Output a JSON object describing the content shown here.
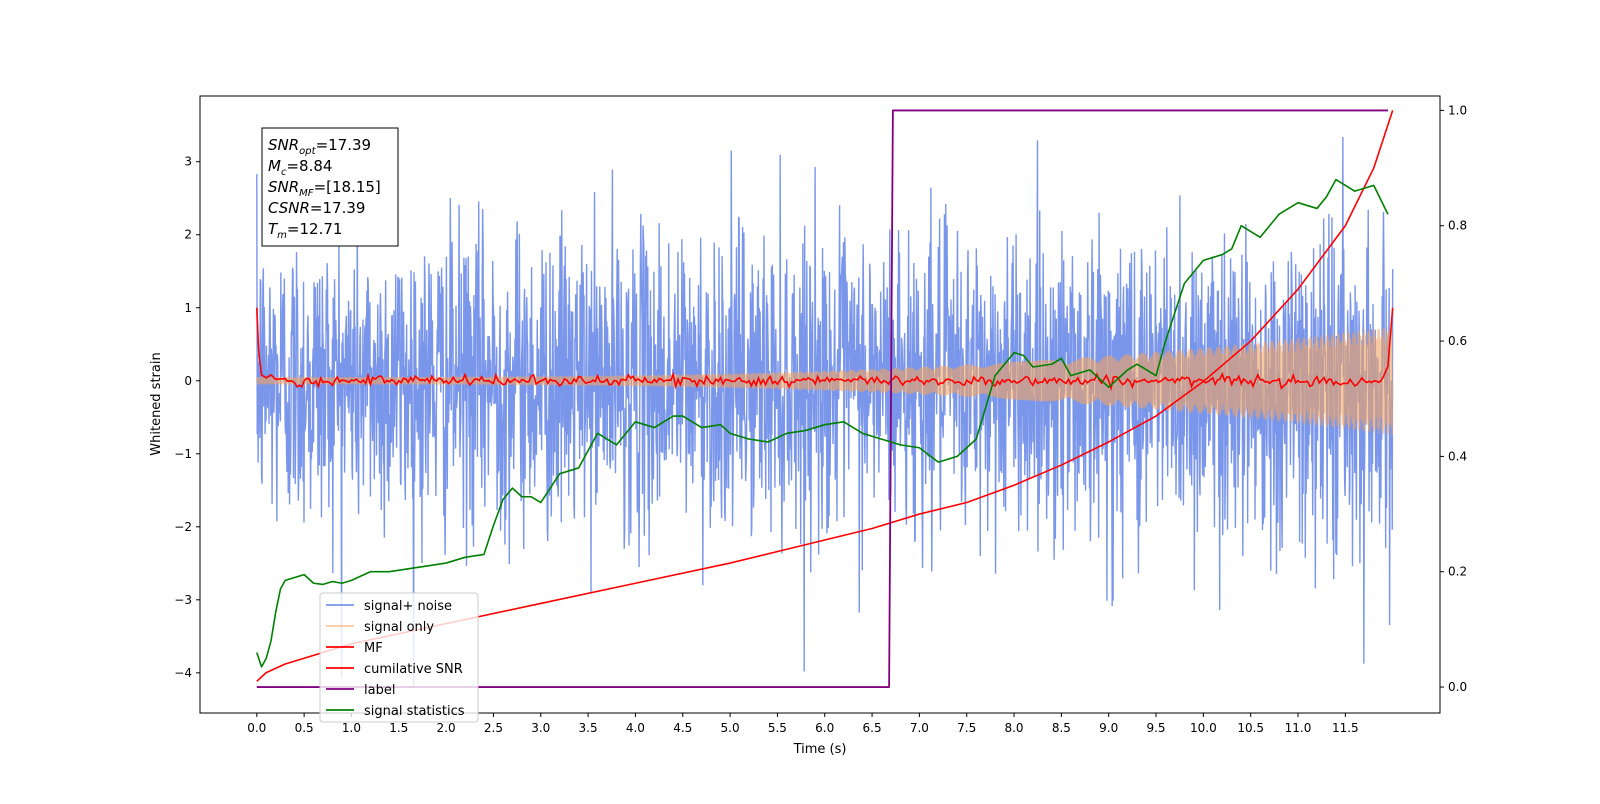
{
  "chart_data": {
    "type": "line",
    "xlabel": "Time (s)",
    "ylabel": "Whitened strain",
    "xlim": [
      -0.6,
      12.5
    ],
    "ylim": [
      -4.55,
      3.9
    ],
    "y2lim": [
      -0.045,
      1.025
    ],
    "xticks": [
      0.0,
      0.5,
      1.0,
      1.5,
      2.0,
      2.5,
      3.0,
      3.5,
      4.0,
      4.5,
      5.0,
      5.5,
      6.0,
      6.5,
      7.0,
      7.5,
      8.0,
      8.5,
      9.0,
      9.5,
      10.0,
      10.5,
      11.0,
      11.5
    ],
    "xtick_labels": [
      "0.0",
      "0.5",
      "1.0",
      "1.5",
      "2.0",
      "2.5",
      "3.0",
      "3.5",
      "4.0",
      "4.5",
      "5.0",
      "5.5",
      "6.0",
      "6.5",
      "7.0",
      "7.5",
      "8.0",
      "8.5",
      "9.0",
      "9.5",
      "10.0",
      "10.5",
      "11.0",
      "11.5"
    ],
    "yticks": [
      -4,
      -3,
      -2,
      -1,
      0,
      1,
      2,
      3
    ],
    "ytick_labels": [
      "−4",
      "−3",
      "−2",
      "−1",
      "0",
      "1",
      "2",
      "3"
    ],
    "y2ticks": [
      0.0,
      0.2,
      0.4,
      0.6,
      0.8,
      1.0
    ],
    "y2tick_labels": [
      "0.0",
      "0.2",
      "0.4",
      "0.6",
      "0.8",
      "1.0"
    ],
    "grid": false,
    "legend_position": "bottom-left",
    "annotation": [
      {
        "name": "SNR",
        "sub": "opt",
        "value": "=17.39"
      },
      {
        "name": "M",
        "sub": "c",
        "value": "=8.84"
      },
      {
        "name": "SNR",
        "sub": "MF",
        "value": "=[18.15]"
      },
      {
        "name": "CSNR",
        "sub": "",
        "value": "=17.39"
      },
      {
        "name": "T",
        "sub": "m",
        "value": "=12.71"
      }
    ],
    "series": [
      {
        "name": "signal+ noise",
        "axis": "left",
        "color": "#4169e1",
        "opacity": 0.7,
        "description": "whitened noise + chirp, std ~1, range about -4.2 to 3.55, spanning t = 0.0 to 12.0"
      },
      {
        "name": "signal only",
        "axis": "left",
        "color": "#f4a460",
        "opacity": 0.6,
        "description": "chirp with amplitude growing from ~0.05 at t=0 to ~0.75 at t=12.0"
      },
      {
        "name": "MF",
        "axis": "left",
        "color": "#ff0000",
        "x": [
          0.0,
          0.02,
          0.05,
          0.1,
          0.15,
          0.2,
          0.3,
          0.5,
          1.0,
          2.0,
          3.0,
          4.0,
          5.0,
          6.0,
          7.0,
          8.0,
          9.0,
          10.0,
          11.0,
          11.7,
          11.9,
          11.95,
          12.0
        ],
        "y": [
          1.0,
          0.4,
          0.08,
          0.04,
          0.08,
          0.02,
          0.03,
          0.0,
          0.01,
          0.0,
          0.0,
          0.0,
          0.0,
          0.0,
          0.0,
          0.0,
          0.0,
          0.0,
          0.0,
          0.0,
          0.05,
          0.2,
          1.0
        ]
      },
      {
        "name": "cumilative SNR",
        "axis": "right",
        "color": "#ff0000",
        "x": [
          0.0,
          0.1,
          0.3,
          0.5,
          1.0,
          2.0,
          3.0,
          4.0,
          5.0,
          6.0,
          6.5,
          7.0,
          7.5,
          8.0,
          8.5,
          9.0,
          9.5,
          10.0,
          10.5,
          11.0,
          11.5,
          11.8,
          12.0
        ],
        "y": [
          0.01,
          0.025,
          0.04,
          0.05,
          0.075,
          0.11,
          0.145,
          0.18,
          0.215,
          0.255,
          0.275,
          0.3,
          0.32,
          0.35,
          0.385,
          0.425,
          0.47,
          0.53,
          0.6,
          0.69,
          0.8,
          0.9,
          1.0
        ]
      },
      {
        "name": "label",
        "axis": "right",
        "color": "#800080",
        "x": [
          0.0,
          6.68,
          6.72,
          11.95
        ],
        "y": [
          0.0,
          0.0,
          1.0,
          1.0
        ]
      },
      {
        "name": "signal statistics",
        "axis": "right",
        "color": "#008000",
        "x": [
          0.0,
          0.05,
          0.1,
          0.15,
          0.2,
          0.25,
          0.3,
          0.4,
          0.5,
          0.6,
          0.7,
          0.8,
          0.9,
          1.0,
          1.2,
          1.4,
          1.6,
          1.8,
          2.0,
          2.2,
          2.4,
          2.5,
          2.6,
          2.7,
          2.8,
          2.9,
          3.0,
          3.2,
          3.4,
          3.5,
          3.6,
          3.8,
          4.0,
          4.2,
          4.4,
          4.5,
          4.7,
          4.9,
          5.0,
          5.2,
          5.4,
          5.6,
          5.8,
          6.0,
          6.2,
          6.4,
          6.6,
          6.8,
          7.0,
          7.2,
          7.4,
          7.6,
          7.8,
          8.0,
          8.1,
          8.2,
          8.4,
          8.5,
          8.6,
          8.8,
          9.0,
          9.2,
          9.3,
          9.5,
          9.6,
          9.8,
          10.0,
          10.2,
          10.3,
          10.4,
          10.6,
          10.8,
          11.0,
          11.2,
          11.3,
          11.4,
          11.6,
          11.8,
          11.95
        ],
        "y": [
          0.06,
          0.035,
          0.05,
          0.08,
          0.13,
          0.17,
          0.185,
          0.19,
          0.195,
          0.18,
          0.178,
          0.183,
          0.18,
          0.185,
          0.2,
          0.2,
          0.205,
          0.21,
          0.215,
          0.225,
          0.23,
          0.28,
          0.325,
          0.345,
          0.33,
          0.33,
          0.32,
          0.37,
          0.38,
          0.41,
          0.44,
          0.42,
          0.46,
          0.45,
          0.47,
          0.47,
          0.45,
          0.455,
          0.44,
          0.43,
          0.425,
          0.44,
          0.445,
          0.455,
          0.46,
          0.44,
          0.43,
          0.42,
          0.415,
          0.39,
          0.4,
          0.43,
          0.54,
          0.58,
          0.575,
          0.555,
          0.56,
          0.57,
          0.54,
          0.55,
          0.52,
          0.55,
          0.56,
          0.54,
          0.6,
          0.7,
          0.74,
          0.75,
          0.76,
          0.8,
          0.78,
          0.82,
          0.84,
          0.83,
          0.85,
          0.88,
          0.86,
          0.87,
          0.82
        ]
      }
    ]
  }
}
